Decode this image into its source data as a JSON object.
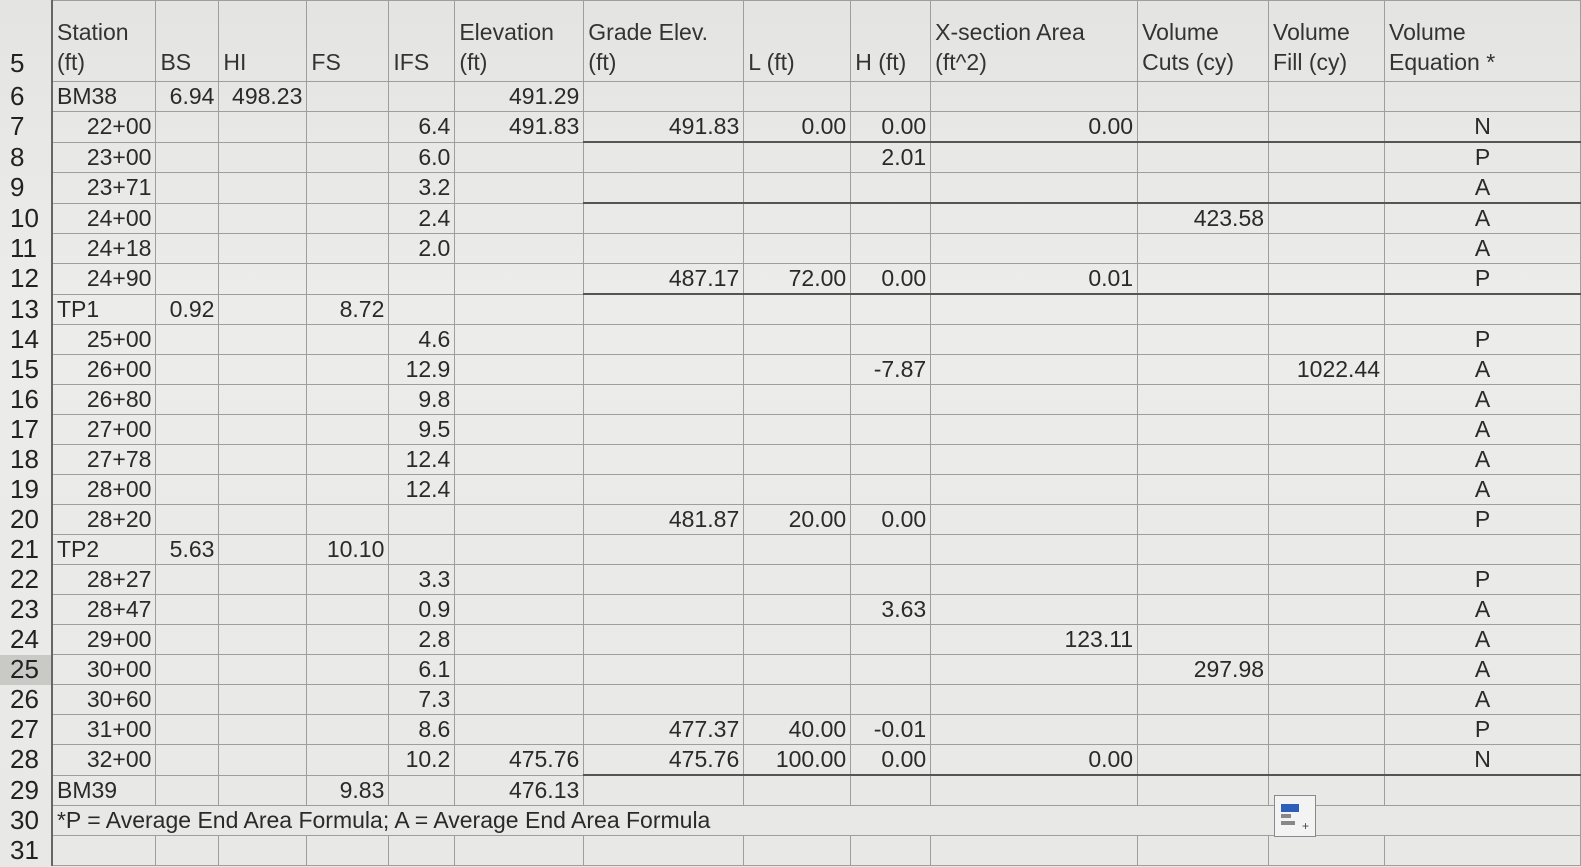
{
  "headers": {
    "rownum": "5",
    "station_a": "Station",
    "station_b": "(ft)",
    "bs": "BS",
    "hi": "HI",
    "fs": "FS",
    "ifs": "IFS",
    "elev_a": "Elevation",
    "elev_b": "(ft)",
    "grade_a": "Grade Elev.",
    "grade_b": "(ft)",
    "l": "L (ft)",
    "h": "H (ft)",
    "xs_a": "X-section Area",
    "xs_b": "(ft^2)",
    "vc_a": "Volume",
    "vc_b": "Cuts (cy)",
    "vf_a": "Volume",
    "vf_b": "Fill (cy)",
    "ve_a": "Volume",
    "ve_b": "Equation *"
  },
  "rows": [
    {
      "n": "6",
      "sta": "BM38",
      "bs": "6.94",
      "hi": "498.23",
      "fs": "",
      "ifs": "",
      "elev": "491.29",
      "grade": "",
      "l": "",
      "h": "",
      "xs": "",
      "vc": "",
      "vf": "",
      "ve": ""
    },
    {
      "n": "7",
      "sta": "22+00",
      "bs": "",
      "hi": "",
      "fs": "",
      "ifs": "6.4",
      "elev": "491.83",
      "grade": "491.83",
      "l": "0.00",
      "h": "0.00",
      "xs": "0.00",
      "vc": "",
      "vf": "",
      "ve": "N"
    },
    {
      "n": "8",
      "sta": "23+00",
      "bs": "",
      "hi": "",
      "fs": "",
      "ifs": "6.0",
      "elev": "",
      "grade": "",
      "l": "",
      "h": "2.01",
      "xs": "",
      "vc": "",
      "vf": "",
      "ve": "P"
    },
    {
      "n": "9",
      "sta": "23+71",
      "bs": "",
      "hi": "",
      "fs": "",
      "ifs": "3.2",
      "elev": "",
      "grade": "",
      "l": "",
      "h": "",
      "xs": "",
      "vc": "",
      "vf": "",
      "ve": "A"
    },
    {
      "n": "10",
      "sta": "24+00",
      "bs": "",
      "hi": "",
      "fs": "",
      "ifs": "2.4",
      "elev": "",
      "grade": "",
      "l": "",
      "h": "",
      "xs": "",
      "vc": "423.58",
      "vf": "",
      "ve": "A"
    },
    {
      "n": "11",
      "sta": "24+18",
      "bs": "",
      "hi": "",
      "fs": "",
      "ifs": "2.0",
      "elev": "",
      "grade": "",
      "l": "",
      "h": "",
      "xs": "",
      "vc": "",
      "vf": "",
      "ve": "A"
    },
    {
      "n": "12",
      "sta": "24+90",
      "bs": "",
      "hi": "",
      "fs": "",
      "ifs": "",
      "elev": "",
      "grade": "487.17",
      "l": "72.00",
      "h": "0.00",
      "xs": "0.01",
      "vc": "",
      "vf": "",
      "ve": "P"
    },
    {
      "n": "13",
      "sta": "TP1",
      "bs": "0.92",
      "hi": "",
      "fs": "8.72",
      "ifs": "",
      "elev": "",
      "grade": "",
      "l": "",
      "h": "",
      "xs": "",
      "vc": "",
      "vf": "",
      "ve": ""
    },
    {
      "n": "14",
      "sta": "25+00",
      "bs": "",
      "hi": "",
      "fs": "",
      "ifs": "4.6",
      "elev": "",
      "grade": "",
      "l": "",
      "h": "",
      "xs": "",
      "vc": "",
      "vf": "",
      "ve": "P"
    },
    {
      "n": "15",
      "sta": "26+00",
      "bs": "",
      "hi": "",
      "fs": "",
      "ifs": "12.9",
      "elev": "",
      "grade": "",
      "l": "",
      "h": "-7.87",
      "xs": "",
      "vc": "",
      "vf": "1022.44",
      "ve": "A"
    },
    {
      "n": "16",
      "sta": "26+80",
      "bs": "",
      "hi": "",
      "fs": "",
      "ifs": "9.8",
      "elev": "",
      "grade": "",
      "l": "",
      "h": "",
      "xs": "",
      "vc": "",
      "vf": "",
      "ve": "A"
    },
    {
      "n": "17",
      "sta": "27+00",
      "bs": "",
      "hi": "",
      "fs": "",
      "ifs": "9.5",
      "elev": "",
      "grade": "",
      "l": "",
      "h": "",
      "xs": "",
      "vc": "",
      "vf": "",
      "ve": "A"
    },
    {
      "n": "18",
      "sta": "27+78",
      "bs": "",
      "hi": "",
      "fs": "",
      "ifs": "12.4",
      "elev": "",
      "grade": "",
      "l": "",
      "h": "",
      "xs": "",
      "vc": "",
      "vf": "",
      "ve": "A"
    },
    {
      "n": "19",
      "sta": "28+00",
      "bs": "",
      "hi": "",
      "fs": "",
      "ifs": "12.4",
      "elev": "",
      "grade": "",
      "l": "",
      "h": "",
      "xs": "",
      "vc": "",
      "vf": "",
      "ve": "A"
    },
    {
      "n": "20",
      "sta": "28+20",
      "bs": "",
      "hi": "",
      "fs": "",
      "ifs": "",
      "elev": "",
      "grade": "481.87",
      "l": "20.00",
      "h": "0.00",
      "xs": "",
      "vc": "",
      "vf": "",
      "ve": "P"
    },
    {
      "n": "21",
      "sta": "TP2",
      "bs": "5.63",
      "hi": "",
      "fs": "10.10",
      "ifs": "",
      "elev": "",
      "grade": "",
      "l": "",
      "h": "",
      "xs": "",
      "vc": "",
      "vf": "",
      "ve": ""
    },
    {
      "n": "22",
      "sta": "28+27",
      "bs": "",
      "hi": "",
      "fs": "",
      "ifs": "3.3",
      "elev": "",
      "grade": "",
      "l": "",
      "h": "",
      "xs": "",
      "vc": "",
      "vf": "",
      "ve": "P"
    },
    {
      "n": "23",
      "sta": "28+47",
      "bs": "",
      "hi": "",
      "fs": "",
      "ifs": "0.9",
      "elev": "",
      "grade": "",
      "l": "",
      "h": "3.63",
      "xs": "",
      "vc": "",
      "vf": "",
      "ve": "A"
    },
    {
      "n": "24",
      "sta": "29+00",
      "bs": "",
      "hi": "",
      "fs": "",
      "ifs": "2.8",
      "elev": "",
      "grade": "",
      "l": "",
      "h": "",
      "xs": "123.11",
      "vc": "",
      "vf": "",
      "ve": "A"
    },
    {
      "n": "25",
      "sta": "30+00",
      "bs": "",
      "hi": "",
      "fs": "",
      "ifs": "6.1",
      "elev": "",
      "grade": "",
      "l": "",
      "h": "",
      "xs": "",
      "vc": "297.98",
      "vf": "",
      "ve": "A"
    },
    {
      "n": "26",
      "sta": "30+60",
      "bs": "",
      "hi": "",
      "fs": "",
      "ifs": "7.3",
      "elev": "",
      "grade": "",
      "l": "",
      "h": "",
      "xs": "",
      "vc": "",
      "vf": "",
      "ve": "A"
    },
    {
      "n": "27",
      "sta": "31+00",
      "bs": "",
      "hi": "",
      "fs": "",
      "ifs": "8.6",
      "elev": "",
      "grade": "477.37",
      "l": "40.00",
      "h": "-0.01",
      "xs": "",
      "vc": "",
      "vf": "",
      "ve": "P"
    },
    {
      "n": "28",
      "sta": "32+00",
      "bs": "",
      "hi": "",
      "fs": "",
      "ifs": "10.2",
      "elev": "475.76",
      "grade": "475.76",
      "l": "100.00",
      "h": "0.00",
      "xs": "0.00",
      "vc": "",
      "vf": "",
      "ve": "N"
    },
    {
      "n": "29",
      "sta": "BM39",
      "bs": "",
      "hi": "",
      "fs": "9.83",
      "ifs": "",
      "elev": "476.13",
      "grade": "",
      "l": "",
      "h": "",
      "xs": "",
      "vc": "",
      "vf": "",
      "ve": ""
    }
  ],
  "footnote": {
    "n": "30",
    "text": "*P = Average End Area Formula; A = Average End Area Formula"
  },
  "partial_row": {
    "n": "31"
  },
  "selected_row": "25",
  "colors": {
    "selected_row_bg": "#c9c9c6",
    "grid": "#9e9e9c",
    "quick_analysis_blue": "#2e5fb8"
  }
}
